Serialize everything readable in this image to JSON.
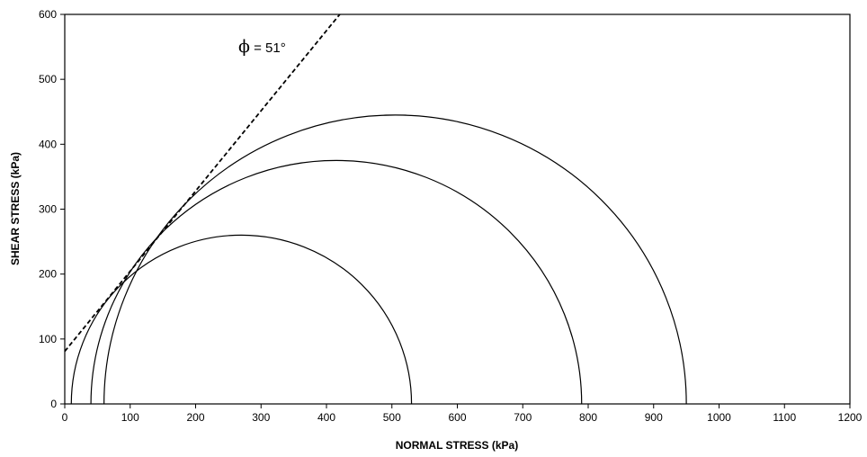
{
  "chart_data": {
    "type": "mohr-circle",
    "xlabel": "NORMAL STRESS (kPa)",
    "ylabel": "SHEAR STRESS (kPa)",
    "xlim": [
      0,
      1200
    ],
    "ylim": [
      0,
      600
    ],
    "xticks": [
      0,
      100,
      200,
      300,
      400,
      500,
      600,
      700,
      800,
      900,
      1000,
      1100,
      1200
    ],
    "yticks": [
      0,
      100,
      200,
      300,
      400,
      500,
      600
    ],
    "grid": false,
    "circles": [
      {
        "sigma3": 10,
        "sigma1": 530
      },
      {
        "sigma3": 40,
        "sigma1": 790
      },
      {
        "sigma3": 60,
        "sigma1": 950
      }
    ],
    "envelope": {
      "style": "dashed",
      "cohesion": 81,
      "phi_deg": 51,
      "label_symbol": "ϕ",
      "label_text": " = 51°"
    }
  }
}
